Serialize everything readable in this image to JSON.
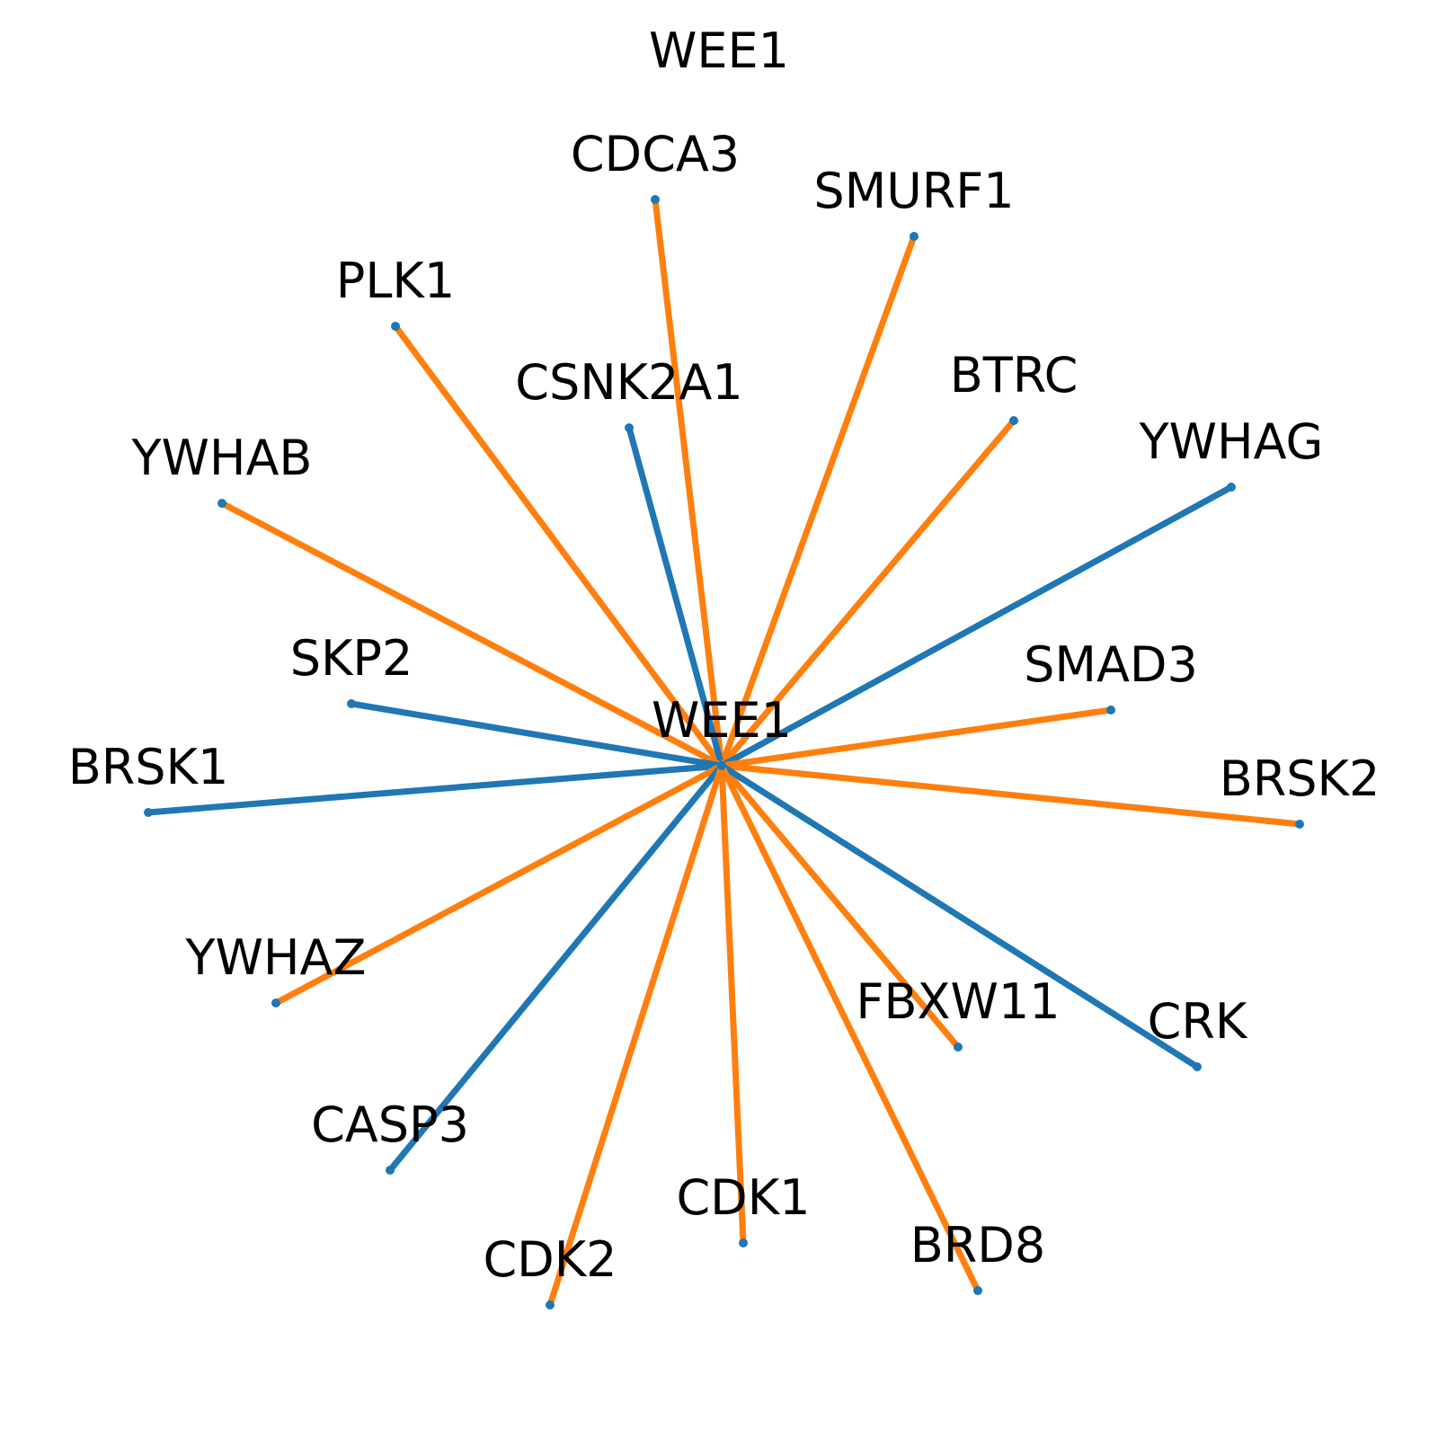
{
  "title": "WEE1",
  "center": {
    "label": "WEE1"
  },
  "colors": {
    "blue": "#1f77b4",
    "orange": "#ff7f0e",
    "dot": "#1f77b4"
  },
  "nodes": [
    {
      "id": "CDCA3",
      "label": "CDCA3",
      "edge_color": "orange"
    },
    {
      "id": "SMURF1",
      "label": "SMURF1",
      "edge_color": "orange"
    },
    {
      "id": "PLK1",
      "label": "PLK1",
      "edge_color": "orange"
    },
    {
      "id": "CSNK2A1",
      "label": "CSNK2A1",
      "edge_color": "blue"
    },
    {
      "id": "BTRC",
      "label": "BTRC",
      "edge_color": "orange"
    },
    {
      "id": "YWHAB",
      "label": "YWHAB",
      "edge_color": "orange"
    },
    {
      "id": "YWHAG",
      "label": "YWHAG",
      "edge_color": "blue"
    },
    {
      "id": "SKP2",
      "label": "SKP2",
      "edge_color": "blue"
    },
    {
      "id": "SMAD3",
      "label": "SMAD3",
      "edge_color": "orange"
    },
    {
      "id": "BRSK1",
      "label": "BRSK1",
      "edge_color": "blue"
    },
    {
      "id": "BRSK2",
      "label": "BRSK2",
      "edge_color": "orange"
    },
    {
      "id": "YWHAZ",
      "label": "YWHAZ",
      "edge_color": "orange"
    },
    {
      "id": "FBXW11",
      "label": "FBXW11",
      "edge_color": "orange"
    },
    {
      "id": "CRK",
      "label": "CRK",
      "edge_color": "blue"
    },
    {
      "id": "CASP3",
      "label": "CASP3",
      "edge_color": "blue"
    },
    {
      "id": "CDK1",
      "label": "CDK1",
      "edge_color": "orange"
    },
    {
      "id": "BRD8",
      "label": "BRD8",
      "edge_color": "orange"
    },
    {
      "id": "CDK2",
      "label": "CDK2",
      "edge_color": "orange"
    }
  ]
}
